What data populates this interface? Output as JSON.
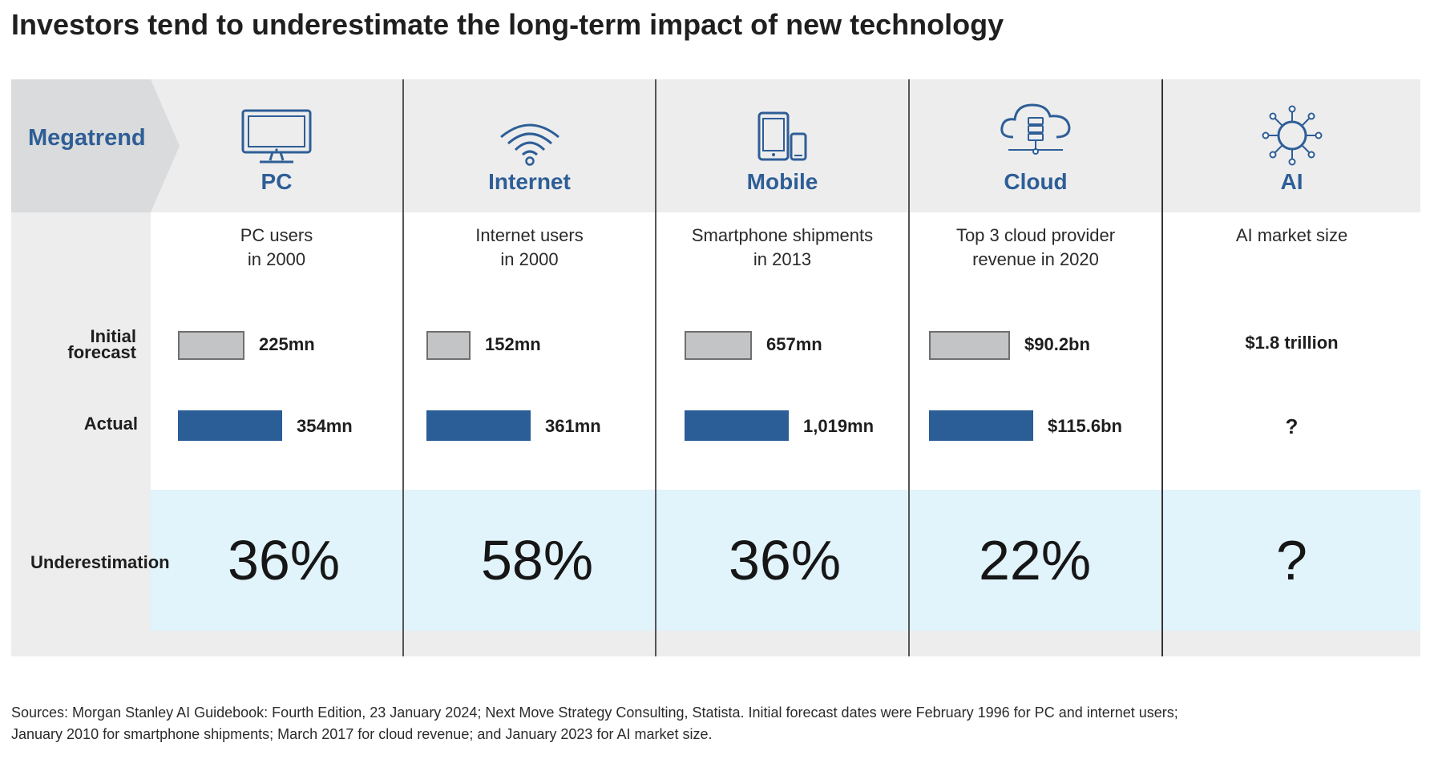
{
  "title": "Investors tend to underestimate the long-term impact of new technology",
  "row_labels": {
    "megatrend": "Megatrend",
    "initial_line1": "Initial",
    "initial_line2": "forecast",
    "actual": "Actual",
    "underestimation": "Underestimation"
  },
  "colors": {
    "accent_blue": "#2e5e96",
    "actual_bar": "#2b5d97",
    "initial_bar": "#c3c4c6",
    "header_band": "#ededee",
    "underestimation_band": "#e1f3fb"
  },
  "chart_data": {
    "type": "bar",
    "title": "Investors tend to underestimate the long-term impact of new technology",
    "categories": [
      "PC",
      "Internet",
      "Mobile",
      "Cloud",
      "AI"
    ],
    "series": [
      {
        "name": "Initial forecast",
        "values": [
          225,
          152,
          657,
          90.2,
          null
        ]
      },
      {
        "name": "Actual",
        "values": [
          354,
          361,
          1019,
          115.6,
          null
        ]
      }
    ],
    "columns": [
      {
        "name": "PC",
        "icon": "monitor-icon",
        "metric_line1": "PC users",
        "metric_line2": "in 2000",
        "initial_label": "225mn",
        "actual_label": "354mn",
        "underestimation": "36%"
      },
      {
        "name": "Internet",
        "icon": "wifi-icon",
        "metric_line1": "Internet users",
        "metric_line2": "in 2000",
        "initial_label": "152mn",
        "actual_label": "361mn",
        "underestimation": "58%"
      },
      {
        "name": "Mobile",
        "icon": "mobile-devices-icon",
        "metric_line1": "Smartphone shipments",
        "metric_line2": "in 2013",
        "initial_label": "657mn",
        "actual_label": "1,019mn",
        "underestimation": "36%"
      },
      {
        "name": "Cloud",
        "icon": "cloud-server-icon",
        "metric_line1": "Top 3 cloud provider",
        "metric_line2": "revenue in 2020",
        "initial_label": "$90.2bn",
        "actual_label": "$115.6bn",
        "underestimation": "22%"
      },
      {
        "name": "AI",
        "icon": "ai-network-icon",
        "metric_line1": "AI market size",
        "metric_line2": "",
        "initial_label": "$1.8 trillion",
        "actual_label": "?",
        "underestimation": "?"
      }
    ]
  },
  "sources": {
    "line1": "Sources: Morgan Stanley AI Guidebook: Fourth Edition, 23 January 2024; Next Move Strategy Consulting, Statista. Initial forecast dates were February 1996 for PC and internet users;",
    "line2": "January 2010 for smartphone shipments; March 2017 for cloud revenue; and January 2023 for AI market size."
  }
}
